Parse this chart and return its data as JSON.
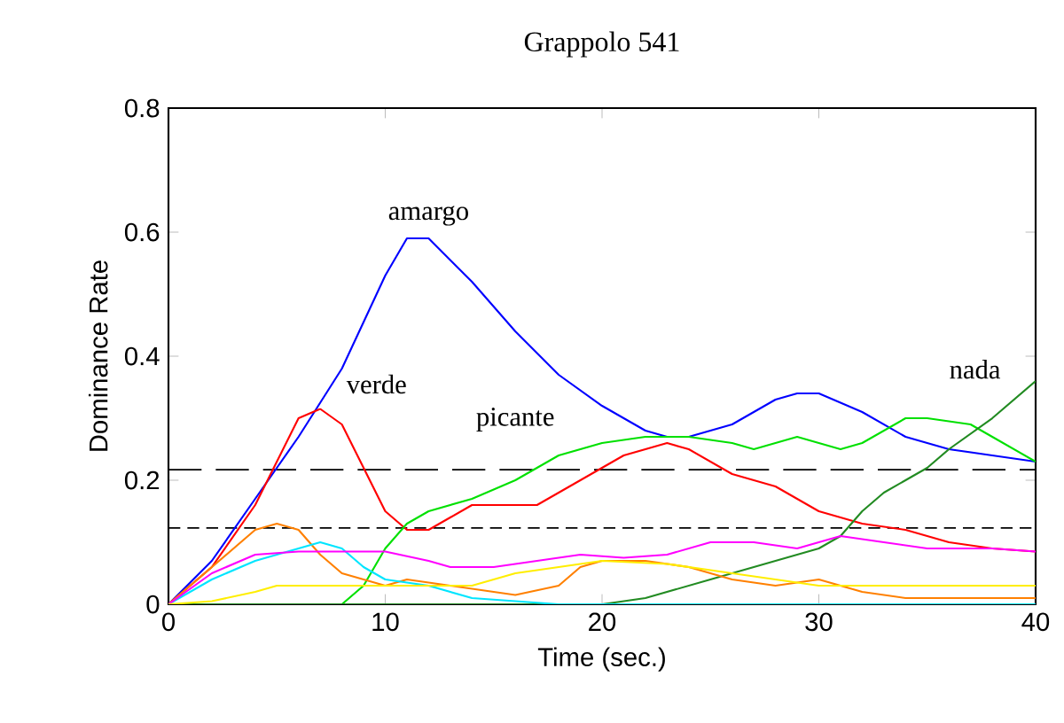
{
  "chart_data": {
    "type": "line",
    "title": "Grappolo 541",
    "xlabel": "Time (sec.)",
    "ylabel": "Dominance Rate",
    "xlim": [
      0,
      40
    ],
    "ylim": [
      0,
      0.8
    ],
    "xticks": [
      0,
      10,
      20,
      30,
      40
    ],
    "yticks": [
      0,
      0.2,
      0.4,
      0.6,
      0.8
    ],
    "grid": false,
    "marker": "none",
    "line_style": "solid",
    "series": [
      {
        "color": "#0000ff",
        "x": [
          0,
          2,
          4,
          5,
          6,
          8,
          10,
          11,
          12,
          14,
          16,
          18,
          20,
          22,
          23,
          24,
          26,
          28,
          29,
          30,
          32,
          34,
          36,
          38,
          40
        ],
        "values": [
          0,
          0.07,
          0.17,
          0.22,
          0.27,
          0.38,
          0.53,
          0.59,
          0.59,
          0.52,
          0.44,
          0.37,
          0.32,
          0.28,
          0.27,
          0.27,
          0.29,
          0.33,
          0.34,
          0.34,
          0.31,
          0.27,
          0.25,
          0.24,
          0.23
        ]
      },
      {
        "color": "#ff0000",
        "x": [
          0,
          2,
          4,
          5,
          6,
          7,
          8,
          9,
          10,
          11,
          12,
          13,
          14,
          17,
          19,
          21,
          23,
          24,
          26,
          28,
          30,
          32,
          34,
          36,
          38,
          40
        ],
        "values": [
          0,
          0.06,
          0.16,
          0.23,
          0.3,
          0.315,
          0.29,
          0.22,
          0.15,
          0.12,
          0.12,
          0.14,
          0.16,
          0.16,
          0.2,
          0.24,
          0.26,
          0.25,
          0.21,
          0.19,
          0.15,
          0.13,
          0.12,
          0.1,
          0.09,
          0.085
        ]
      },
      {
        "color": "#00e000",
        "x": [
          0,
          8,
          9,
          10,
          11,
          12,
          14,
          16,
          18,
          20,
          22,
          24,
          26,
          27,
          29,
          30,
          31,
          32,
          34,
          35,
          37,
          38,
          40
        ],
        "values": [
          0,
          0,
          0.03,
          0.09,
          0.13,
          0.15,
          0.17,
          0.2,
          0.24,
          0.26,
          0.27,
          0.27,
          0.26,
          0.25,
          0.27,
          0.26,
          0.25,
          0.26,
          0.3,
          0.3,
          0.29,
          0.27,
          0.23
        ]
      },
      {
        "color": "#228b22",
        "x": [
          0,
          20,
          22,
          25,
          28,
          30,
          31,
          32,
          33,
          34,
          35,
          36,
          38,
          40
        ],
        "values": [
          0,
          0,
          0.01,
          0.04,
          0.07,
          0.09,
          0.11,
          0.15,
          0.18,
          0.2,
          0.22,
          0.25,
          0.3,
          0.36
        ]
      },
      {
        "color": "#ff8000",
        "x": [
          0,
          2,
          4,
          5,
          6,
          7,
          8,
          9,
          10,
          11,
          13,
          15,
          16,
          18,
          19,
          20,
          22,
          24,
          26,
          28,
          30,
          32,
          34,
          40
        ],
        "values": [
          0,
          0.06,
          0.12,
          0.13,
          0.12,
          0.08,
          0.05,
          0.04,
          0.03,
          0.04,
          0.03,
          0.02,
          0.015,
          0.03,
          0.06,
          0.07,
          0.07,
          0.06,
          0.04,
          0.03,
          0.04,
          0.02,
          0.01,
          0.01
        ]
      },
      {
        "color": "#00e5ff",
        "x": [
          0,
          2,
          4,
          6,
          7,
          8,
          9,
          10,
          12,
          14,
          16,
          18,
          40
        ],
        "values": [
          0,
          0.04,
          0.07,
          0.09,
          0.1,
          0.09,
          0.06,
          0.04,
          0.03,
          0.01,
          0.005,
          0,
          0
        ]
      },
      {
        "color": "#ff00ff",
        "x": [
          0,
          2,
          4,
          6,
          10,
          12,
          13,
          15,
          17,
          19,
          21,
          23,
          25,
          27,
          29,
          31,
          33,
          35,
          38,
          40
        ],
        "values": [
          0,
          0.05,
          0.08,
          0.085,
          0.085,
          0.07,
          0.06,
          0.06,
          0.07,
          0.08,
          0.075,
          0.08,
          0.1,
          0.1,
          0.09,
          0.11,
          0.1,
          0.09,
          0.09,
          0.085
        ]
      },
      {
        "color": "#ffee00",
        "x": [
          0,
          2,
          4,
          5,
          8,
          12,
          14,
          16,
          18,
          20,
          23,
          26,
          28,
          30,
          31,
          40
        ],
        "values": [
          0,
          0.005,
          0.02,
          0.03,
          0.03,
          0.03,
          0.03,
          0.05,
          0.06,
          0.07,
          0.065,
          0.05,
          0.04,
          0.03,
          0.03,
          0.03
        ]
      }
    ],
    "ref_lines": [
      {
        "axis": "y",
        "value": 0.217,
        "color": "#000000",
        "line_style": "dashed"
      },
      {
        "axis": "y",
        "value": 0.123,
        "color": "#000000",
        "line_style": "dashed"
      }
    ],
    "annotations": [
      "amargo",
      "verde",
      "picante",
      "nada"
    ]
  }
}
